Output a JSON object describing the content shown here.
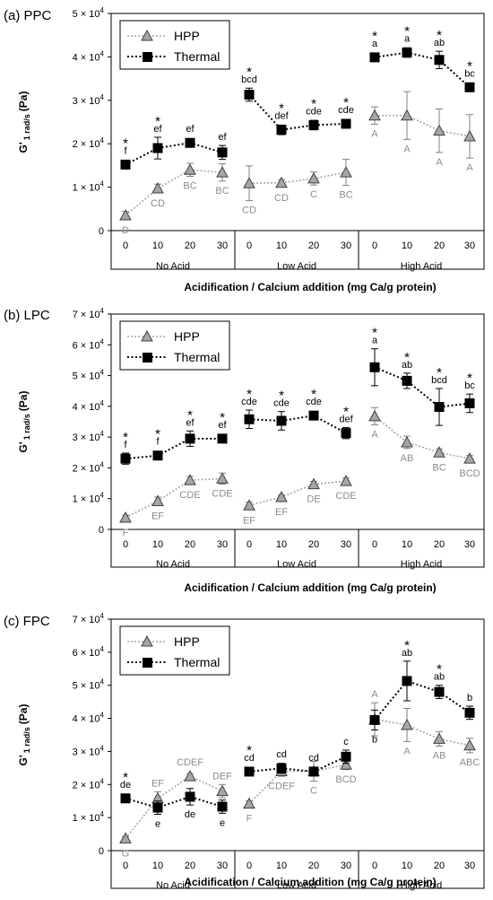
{
  "figure": {
    "shared": {
      "categories": [
        "0",
        "10",
        "20",
        "30"
      ],
      "groups": [
        "No Acid",
        "Low Acid",
        "High Acid"
      ],
      "xlabel": "Acidification / Calcium addition (mg Ca/g protein)",
      "ylabel_main": "G'",
      "ylabel_sub": "1 rad/s",
      "ylabel_unit": "(Pa)",
      "tick_mantissa_suffix": " × 10",
      "tick_exponent": "4",
      "star": "*"
    },
    "colors": {
      "hpp_marker": "#a6a6a6",
      "hpp_line": "#a6a6a6",
      "hpp_text": "#8c8c8c",
      "thermal_marker": "#000000",
      "thermal_text": "#000000"
    }
  },
  "chart_data": [
    {
      "type": "line",
      "panel_label": "(a) PPC",
      "ylim": [
        0,
        50000
      ],
      "yticks": [
        0,
        10000,
        20000,
        30000,
        40000,
        50000
      ],
      "ytick_labels": [
        "0",
        "1",
        "2",
        "3",
        "4",
        "5"
      ],
      "legend_placement": "top-left",
      "legend": [
        "HPP",
        "Thermal"
      ],
      "series": [
        {
          "name": "HPP",
          "values": [
            [
              3500,
              9700,
              14000,
              13400
            ],
            [
              10900,
              11000,
              12000,
              13400
            ],
            [
              26500,
              26500,
              23000,
              21700
            ]
          ],
          "errors": [
            [
              900,
              1000,
              1500,
              2000
            ],
            [
              4000,
              700,
              1500,
              3000
            ],
            [
              2000,
              5500,
              5000,
              5000
            ]
          ],
          "labels": [
            [
              "D",
              "CD",
              "BC",
              "BC"
            ],
            [
              "CD",
              "CD",
              "C",
              "BC"
            ],
            [
              "A",
              "A",
              "A",
              "A"
            ]
          ],
          "label_position": [
            [
              "below",
              "below",
              "below",
              "below"
            ],
            [
              "below",
              "below",
              "below",
              "below"
            ],
            [
              "below",
              "below",
              "below",
              "below"
            ]
          ],
          "stars": [
            [
              false,
              false,
              false,
              false
            ],
            [
              false,
              false,
              false,
              false
            ],
            [
              false,
              false,
              false,
              false
            ]
          ]
        },
        {
          "name": "Thermal",
          "values": [
            [
              15200,
              19000,
              20200,
              18000
            ],
            [
              31300,
              23200,
              24300,
              24600
            ],
            [
              39900,
              41000,
              39300,
              33000
            ]
          ],
          "errors": [
            [
              500,
              2500,
              500,
              1600
            ],
            [
              1500,
              1100,
              1100,
              1000
            ],
            [
              500,
              1100,
              2000,
              300
            ]
          ],
          "labels": [
            [
              "f",
              "ef",
              "ef",
              "ef"
            ],
            [
              "bcd",
              "def",
              "cde",
              "cde"
            ],
            [
              "a",
              "a",
              "ab",
              "bc"
            ]
          ],
          "label_position": [
            [
              "above",
              "above",
              "above",
              "above"
            ],
            [
              "above",
              "above",
              "above",
              "above"
            ],
            [
              "above",
              "above",
              "above",
              "above"
            ]
          ],
          "stars": [
            [
              true,
              true,
              false,
              false
            ],
            [
              true,
              true,
              true,
              true
            ],
            [
              true,
              true,
              true,
              true
            ]
          ]
        }
      ]
    },
    {
      "type": "line",
      "panel_label": "(b) LPC",
      "ylim": [
        0,
        70000
      ],
      "yticks": [
        0,
        10000,
        20000,
        30000,
        40000,
        50000,
        60000,
        70000
      ],
      "ytick_labels": [
        "0",
        "1",
        "2",
        "3",
        "4",
        "5",
        "6",
        "7"
      ],
      "legend_placement": "top-left",
      "legend": [
        "HPP",
        "Thermal"
      ],
      "series": [
        {
          "name": "HPP",
          "values": [
            [
              3800,
              9200,
              16000,
              16500
            ],
            [
              7800,
              10500,
              14700,
              15700
            ],
            [
              36800,
              28300,
              25000,
              23000
            ]
          ],
          "errors": [
            [
              800,
              1300,
              1200,
              1800
            ],
            [
              1000,
              700,
              900,
              1000
            ],
            [
              2800,
              2000,
              1200,
              1000
            ]
          ],
          "labels": [
            [
              "F",
              "EF",
              "CDE",
              "CDE"
            ],
            [
              "EF",
              "EF",
              "DE",
              "CDE"
            ],
            [
              "A",
              "AB",
              "BC",
              "BCD"
            ]
          ],
          "label_position": [
            [
              "below",
              "below",
              "below",
              "below"
            ],
            [
              "below",
              "below",
              "below",
              "below"
            ],
            [
              "below",
              "below",
              "below",
              "below"
            ]
          ],
          "stars": [
            [
              false,
              false,
              false,
              false
            ],
            [
              false,
              false,
              false,
              false
            ],
            [
              false,
              false,
              false,
              false
            ]
          ]
        },
        {
          "name": "Thermal",
          "values": [
            [
              23000,
              24000,
              29500,
              29500
            ],
            [
              35800,
              35300,
              37000,
              31300
            ],
            [
              52700,
              48300,
              39800,
              41000
            ]
          ],
          "errors": [
            [
              1800,
              800,
              2500,
              1000
            ],
            [
              3000,
              3000,
              800,
              1800
            ],
            [
              6000,
              2500,
              6000,
              3000
            ]
          ],
          "labels": [
            [
              "f",
              "f",
              "ef",
              "ef"
            ],
            [
              "cde",
              "cde",
              "cde",
              "def"
            ],
            [
              "a",
              "ab",
              "bcd",
              "bc"
            ]
          ],
          "label_position": [
            [
              "above",
              "above",
              "above",
              "above"
            ],
            [
              "above",
              "above",
              "above",
              "above"
            ],
            [
              "above",
              "above",
              "above",
              "above"
            ]
          ],
          "stars": [
            [
              true,
              true,
              true,
              true
            ],
            [
              true,
              true,
              true,
              true
            ],
            [
              true,
              true,
              true,
              true
            ]
          ]
        }
      ]
    },
    {
      "type": "line",
      "panel_label": "(c) FPC",
      "ylim": [
        0,
        70000
      ],
      "yticks": [
        0,
        10000,
        20000,
        30000,
        40000,
        50000,
        60000,
        70000
      ],
      "ytick_labels": [
        "0",
        "1",
        "2",
        "3",
        "4",
        "5",
        "6",
        "7"
      ],
      "legend_placement": "top-left",
      "legend": [
        "HPP",
        "Thermal"
      ],
      "series": [
        {
          "name": "HPP",
          "values": [
            [
              3700,
              15800,
              22500,
              18000
            ],
            [
              14200,
              24000,
              24000,
              26000
            ],
            [
              39700,
              38000,
              33800,
              31800
            ]
          ],
          "errors": [
            [
              500,
              2000,
              800,
              2000
            ],
            [
              800,
              1500,
              3000,
              1500
            ],
            [
              5000,
              5000,
              2200,
              2200
            ]
          ],
          "labels": [
            [
              "G",
              "EF",
              "CDEF",
              "DEF"
            ],
            [
              "F",
              "CDEF",
              "C",
              "BCD"
            ],
            [
              "A",
              "A",
              "AB",
              "ABC"
            ]
          ],
          "label_position": [
            [
              "below",
              "above",
              "above",
              "above"
            ],
            [
              "below",
              "below",
              "below",
              "below"
            ],
            [
              "above",
              "below",
              "below",
              "below"
            ]
          ],
          "stars": [
            [
              false,
              false,
              false,
              false
            ],
            [
              false,
              false,
              false,
              false
            ],
            [
              false,
              false,
              false,
              false
            ]
          ]
        },
        {
          "name": "Thermal",
          "values": [
            [
              15800,
              13000,
              16300,
              13300
            ],
            [
              23900,
              24900,
              23900,
              28400
            ],
            [
              39500,
              51300,
              48000,
              41700
            ]
          ],
          "errors": [
            [
              500,
              2000,
              2500,
              2000
            ],
            [
              500,
              1500,
              1000,
              2000
            ],
            [
              3000,
              6000,
              2000,
              2000
            ]
          ],
          "labels": [
            [
              "de",
              "e",
              "de",
              "e"
            ],
            [
              "cd",
              "cd",
              "cd",
              "c"
            ],
            [
              "b",
              "ab",
              "ab",
              "b"
            ]
          ],
          "label_position": [
            [
              "above",
              "below",
              "below",
              "below"
            ],
            [
              "above",
              "above",
              "above",
              "above"
            ],
            [
              "below",
              "above",
              "above",
              "above"
            ]
          ],
          "stars": [
            [
              true,
              false,
              false,
              false
            ],
            [
              true,
              false,
              false,
              false
            ],
            [
              false,
              true,
              true,
              false
            ]
          ]
        }
      ]
    }
  ]
}
